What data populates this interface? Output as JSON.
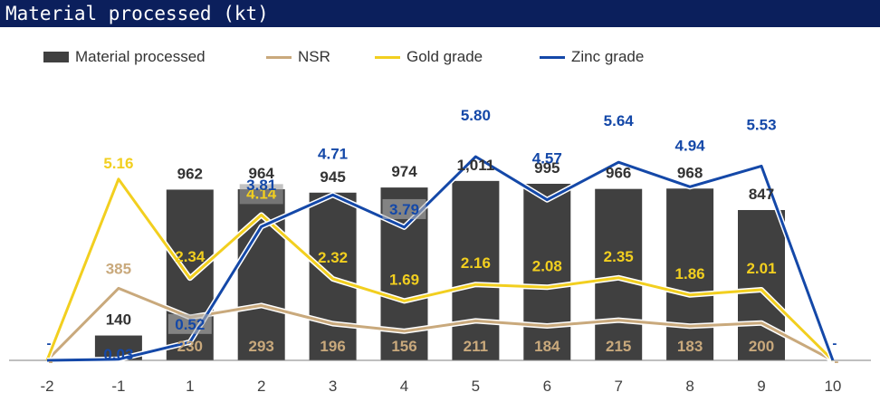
{
  "page": {
    "title": "Material processed (kt)"
  },
  "colors": {
    "title_bg": "#0b1f5c",
    "bar": "#404040",
    "nsr": "#c9a97c",
    "gold": "#f2cf1f",
    "zinc": "#1448a8",
    "bar_label": "#333333"
  },
  "chart_data": {
    "type": "bar",
    "title": "Material processed (kt)",
    "categories": [
      "-2",
      "-1",
      "1",
      "2",
      "3",
      "4",
      "5",
      "6",
      "7",
      "8",
      "9",
      "10"
    ],
    "legend_position": "top-left",
    "series": [
      {
        "name": "Material processed",
        "type": "bar",
        "values": [
          null,
          140,
          962,
          964,
          945,
          974,
          1011,
          995,
          966,
          968,
          847,
          null
        ],
        "labels": [
          "",
          "140",
          "962",
          "964",
          "945",
          "974",
          "1,011",
          "995",
          "966",
          "968",
          "847",
          ""
        ]
      },
      {
        "name": "NSR",
        "type": "line",
        "values": [
          0,
          385,
          230,
          293,
          196,
          156,
          211,
          184,
          215,
          183,
          200,
          0
        ],
        "labels": [
          "-",
          "385",
          "230",
          "293",
          "196",
          "156",
          "211",
          "184",
          "215",
          "183",
          "200",
          "-"
        ]
      },
      {
        "name": "Gold grade",
        "type": "line",
        "values": [
          0,
          5.16,
          2.34,
          4.14,
          2.32,
          1.69,
          2.16,
          2.08,
          2.35,
          1.86,
          2.01,
          0
        ],
        "labels": [
          "-",
          "5.16",
          "2.34",
          "4.14",
          "2.32",
          "1.69",
          "2.16",
          "2.08",
          "2.35",
          "1.86",
          "2.01",
          "-"
        ]
      },
      {
        "name": "Zinc grade",
        "type": "line",
        "values": [
          0,
          0.03,
          0.52,
          3.81,
          4.71,
          3.79,
          5.8,
          4.57,
          5.64,
          4.94,
          5.53,
          0
        ],
        "labels": [
          "-",
          "0.03",
          "0.52",
          "3.81",
          "4.71",
          "3.79",
          "5.80",
          "4.57",
          "5.64",
          "4.94",
          "5.53",
          "-"
        ]
      }
    ],
    "xlabel": "",
    "ylabel": "",
    "grid": false
  }
}
